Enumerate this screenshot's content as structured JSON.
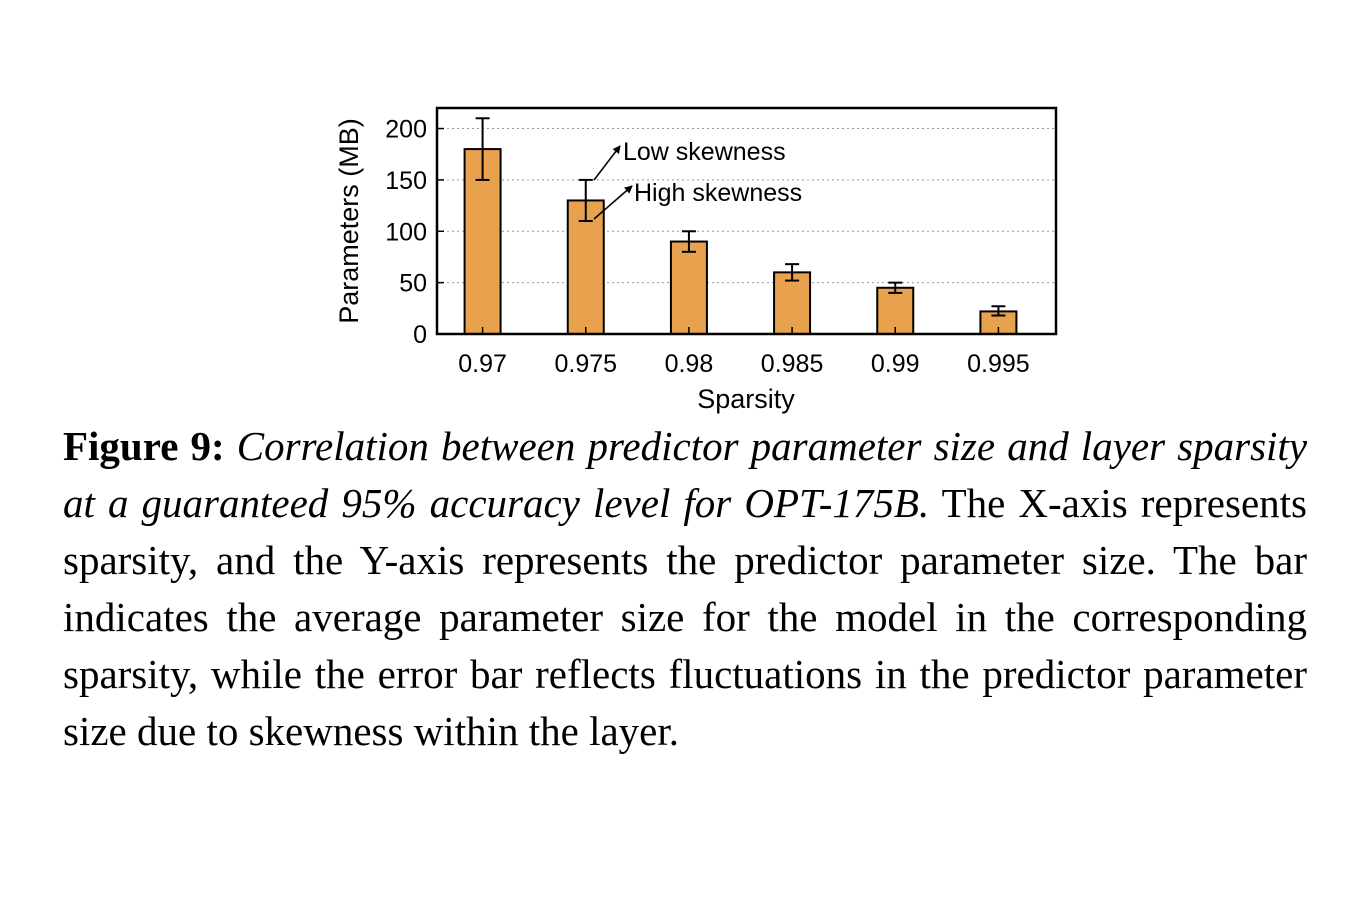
{
  "chart_data": {
    "type": "bar",
    "categories": [
      "0.97",
      "0.975",
      "0.98",
      "0.985",
      "0.99",
      "0.995"
    ],
    "series": [
      {
        "values": [
          180,
          130,
          90,
          60,
          45,
          22
        ],
        "error_low": [
          150,
          110,
          80,
          52,
          40,
          18
        ],
        "error_high": [
          210,
          150,
          100,
          68,
          50,
          27
        ]
      }
    ],
    "title": "",
    "xlabel": "Sparsity",
    "ylabel": "Parameters (MB)",
    "ylim": [
      0,
      220
    ],
    "yticks": [
      0,
      50,
      100,
      150,
      200
    ],
    "grid": "horizontal dotted",
    "bar_color": "#e8a24e",
    "annotations": [
      {
        "text": "Low skewness",
        "points_to": "upper error bar end at 0.975"
      },
      {
        "text": "High skewness",
        "points_to": "lower error bar end at 0.975"
      }
    ]
  },
  "caption": {
    "label": "Figure 9:",
    "title": "Correlation between predictor parameter size and layer sparsity at a guaranteed 95% accuracy level for OPT-175B.",
    "body": "The X-axis represents sparsity, and the Y-axis represents the predictor parameter size. The bar indicates the average parameter size for the model in the corresponding sparsity, while the error bar reflects fluctuations in the predictor parameter size due to skewness within the layer."
  }
}
